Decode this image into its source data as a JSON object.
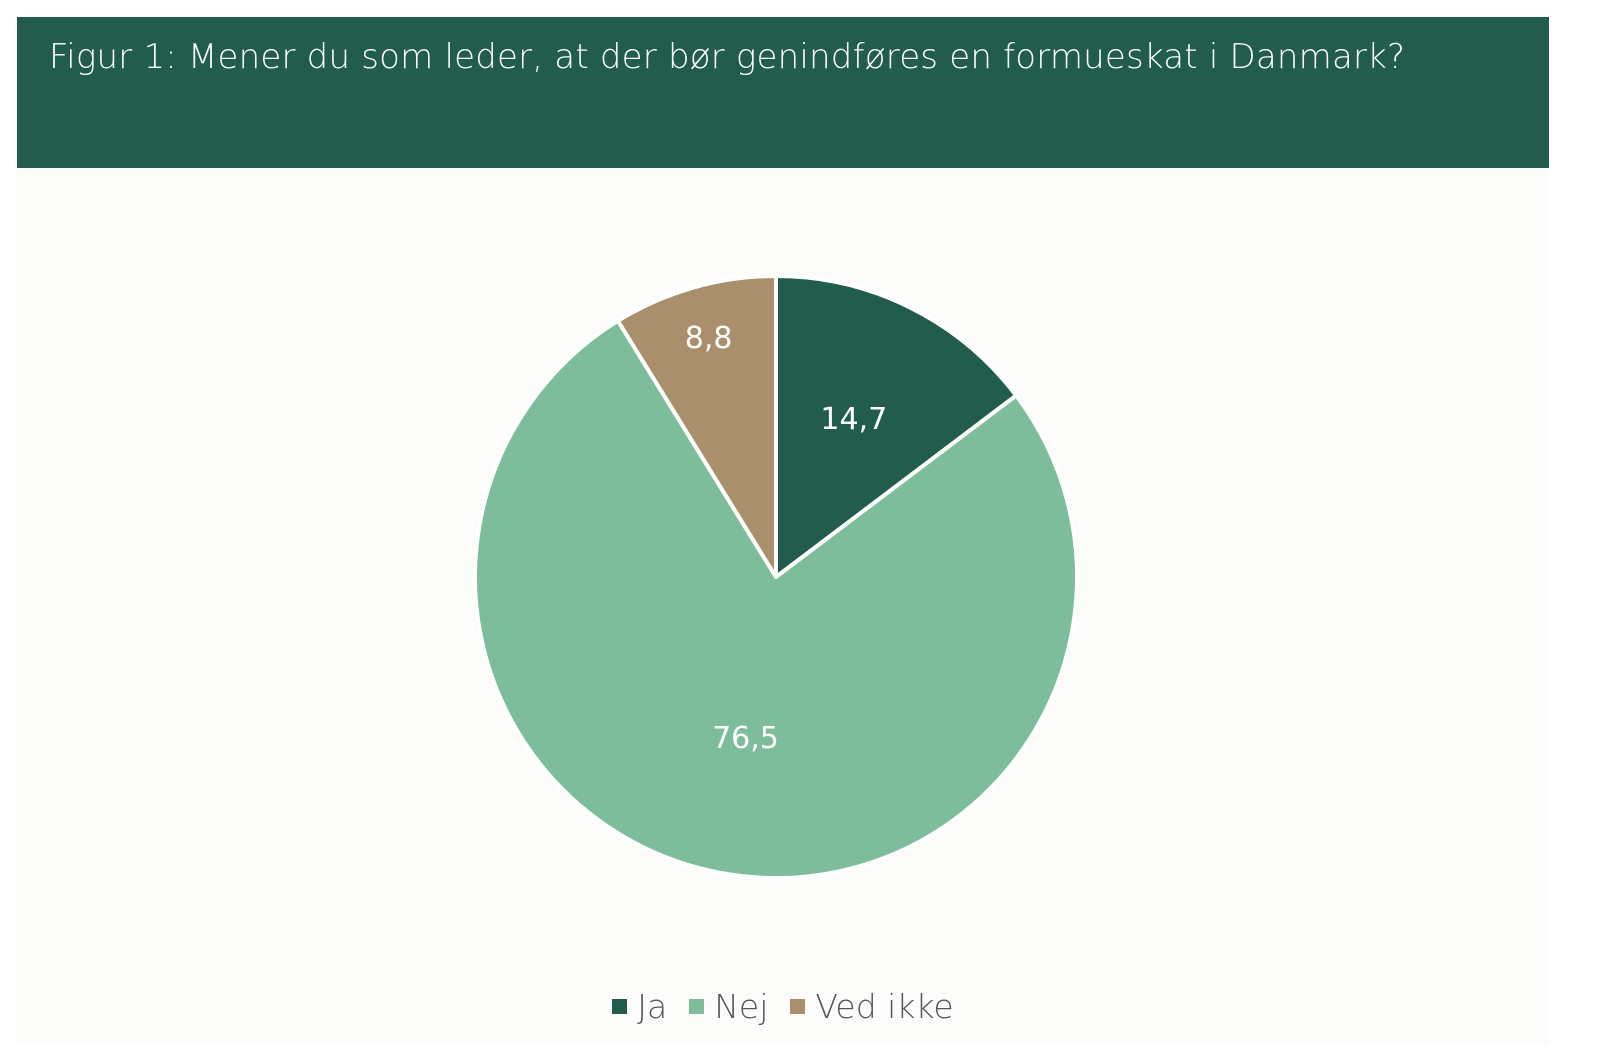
{
  "header": {
    "title": "Figur 1:  Mener du som leder, at der bør genindføres en formueskat i Danmark?"
  },
  "colors": {
    "header_bg": "#215c4d",
    "ja": "#215c4d",
    "nej": "#7ebd9c",
    "ved_ikke": "#a98f6b"
  },
  "chart_data": {
    "type": "pie",
    "title": "Figur 1:  Mener du som leder, at der bør genindføres en formueskat i Danmark?",
    "categories": [
      "Ja",
      "Nej",
      "Ved ikke"
    ],
    "values": [
      14.7,
      76.5,
      8.8
    ],
    "labels": [
      "14,7",
      "76,5",
      "8,8"
    ],
    "colors": [
      "#215c4d",
      "#7ebd9c",
      "#a98f6b"
    ],
    "start_angle": "12 o'clock",
    "direction": "clockwise",
    "legend_position": "bottom"
  },
  "legend": [
    {
      "label": "Ja",
      "color": "#215c4d"
    },
    {
      "label": "Nej",
      "color": "#7ebd9c"
    },
    {
      "label": "Ved ikke",
      "color": "#a98f6b"
    }
  ]
}
